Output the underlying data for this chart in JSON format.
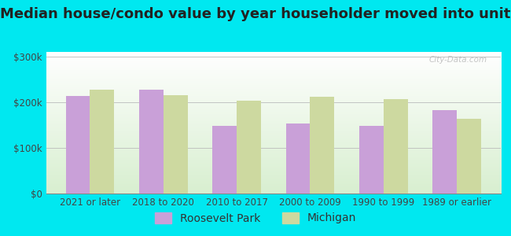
{
  "title": "Median house/condo value by year householder moved into unit",
  "categories": [
    "2021 or later",
    "2018 to 2020",
    "2010 to 2017",
    "2000 to 2009",
    "1990 to 1999",
    "1989 or earlier"
  ],
  "roosevelt_park": [
    213000,
    227000,
    148000,
    153000,
    148000,
    183000
  ],
  "michigan": [
    228000,
    215000,
    203000,
    212000,
    207000,
    163000
  ],
  "bar_color_rp": "#c9a0d8",
  "bar_color_mi": "#cdd9a0",
  "background_color": "#00e8f0",
  "plot_bg_color": "#eaf5e8",
  "ylabel_ticks": [
    "$0",
    "$100k",
    "$200k",
    "$300k"
  ],
  "ytick_values": [
    0,
    100000,
    200000,
    300000
  ],
  "ylim": [
    0,
    310000
  ],
  "legend_labels": [
    "Roosevelt Park",
    "Michigan"
  ],
  "watermark": "City-Data.com",
  "title_fontsize": 13,
  "tick_fontsize": 8.5,
  "legend_fontsize": 10
}
